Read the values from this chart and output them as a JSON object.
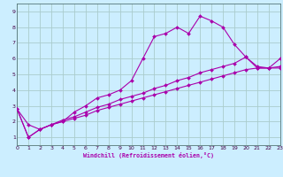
{
  "bg_color": "#cceeff",
  "grid_color": "#aacccc",
  "line_color": "#aa00aa",
  "xlim": [
    0,
    23
  ],
  "ylim": [
    0.5,
    9.5
  ],
  "xticks": [
    0,
    1,
    2,
    3,
    4,
    5,
    6,
    7,
    8,
    9,
    10,
    11,
    12,
    13,
    14,
    15,
    16,
    17,
    18,
    19,
    20,
    21,
    22,
    23
  ],
  "yticks": [
    1,
    2,
    3,
    4,
    5,
    6,
    7,
    8,
    9
  ],
  "xlabel": "Windchill (Refroidissement éolien,°C)",
  "line1_x": [
    0,
    1,
    2,
    3,
    4,
    5,
    6,
    7,
    8,
    9,
    10,
    11,
    12,
    13,
    14,
    15,
    16,
    17,
    18,
    19,
    20,
    21,
    22,
    23
  ],
  "line1_y": [
    2.8,
    1.8,
    1.5,
    1.8,
    2.0,
    2.6,
    3.0,
    3.5,
    3.7,
    4.0,
    4.6,
    6.0,
    7.4,
    7.6,
    8.0,
    7.6,
    8.7,
    8.4,
    8.0,
    6.9,
    6.1,
    5.5,
    5.4,
    6.0
  ],
  "line2_x": [
    0,
    1,
    2,
    3,
    4,
    5,
    6,
    7,
    8,
    9,
    10,
    11,
    12,
    13,
    14,
    15,
    16,
    17,
    18,
    19,
    20,
    21,
    22,
    23
  ],
  "line2_y": [
    2.8,
    1.0,
    1.5,
    1.8,
    2.1,
    2.3,
    2.6,
    2.9,
    3.1,
    3.4,
    3.6,
    3.8,
    4.1,
    4.3,
    4.6,
    4.8,
    5.1,
    5.3,
    5.5,
    5.7,
    6.1,
    5.4,
    5.4,
    5.5
  ],
  "line3_x": [
    0,
    1,
    2,
    3,
    4,
    5,
    6,
    7,
    8,
    9,
    10,
    11,
    12,
    13,
    14,
    15,
    16,
    17,
    18,
    19,
    20,
    21,
    22,
    23
  ],
  "line3_y": [
    2.8,
    1.0,
    1.5,
    1.8,
    2.0,
    2.2,
    2.4,
    2.7,
    2.9,
    3.1,
    3.3,
    3.5,
    3.7,
    3.9,
    4.1,
    4.3,
    4.5,
    4.7,
    4.9,
    5.1,
    5.3,
    5.4,
    5.4,
    5.4
  ]
}
